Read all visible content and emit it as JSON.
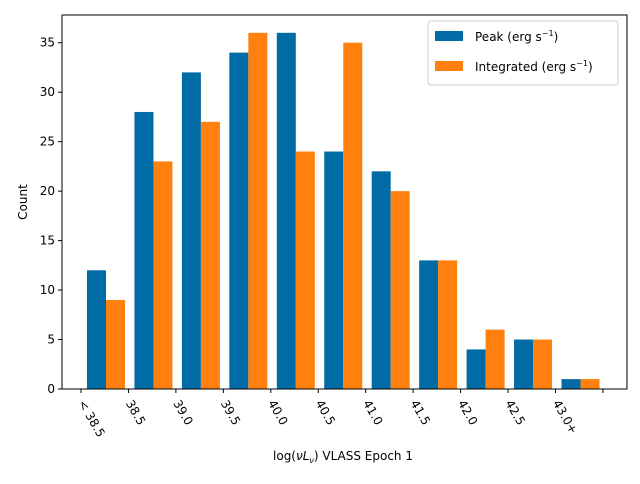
{
  "chart_data": {
    "type": "bar",
    "title": "",
    "xlabel_parts": {
      "prefix": "log(",
      "nu": "ν",
      "L": "L",
      "sub": "ν",
      "suffix": ") VLASS Epoch 1"
    },
    "ylabel": "Count",
    "ylim": [
      0,
      37.8
    ],
    "yticks": [
      0,
      5,
      10,
      15,
      20,
      25,
      30,
      35
    ],
    "xtick_labels": [
      "< 38.5",
      "38.5",
      "39.0",
      "39.5",
      "40.0",
      "40.5",
      "41.0",
      "41.5",
      "42.0",
      "42.5",
      "43.0+"
    ],
    "bar_groups": 11,
    "series": [
      {
        "name": "Peak (erg s",
        "unit_exp": "−1",
        "unit_close": ")",
        "color": "#006BA4",
        "values": [
          12,
          28,
          32,
          34,
          36,
          24,
          22,
          13,
          4,
          5,
          1
        ]
      },
      {
        "name": "Integrated (erg s",
        "unit_exp": "−1",
        "unit_close": ")",
        "color": "#FF800E",
        "values": [
          9,
          23,
          27,
          36,
          24,
          35,
          20,
          13,
          6,
          5,
          1
        ]
      }
    ],
    "legend_position": "upper-right",
    "grid": false
  }
}
